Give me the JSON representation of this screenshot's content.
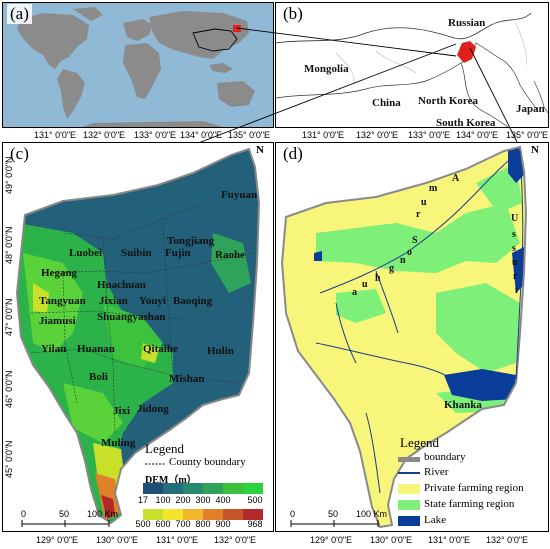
{
  "panels": {
    "a": {
      "label": "(a)"
    },
    "b": {
      "label": "(b)"
    },
    "c": {
      "label": "(c)"
    },
    "d": {
      "label": "(d)"
    }
  },
  "countries": [
    "Russian",
    "Mongolia",
    "China",
    "North Korea",
    "South Korea",
    "Japan"
  ],
  "top_lon_ticks": [
    "131° 0'0\"E",
    "132° 0'0\"E",
    "133° 0'0\"E",
    "134° 0'0\"E",
    "135° 0'0\"E",
    "131° 0'0\"E",
    "132° 0'0\"E",
    "133° 0'0\"E",
    "134° 0'0\"E",
    "135° 0'0\"E"
  ],
  "bottom_lon_ticks": [
    "129° 0'0\"E",
    "130° 0'0\"E",
    "131° 0'0\"E",
    "132° 0'0\"E",
    "129° 0'0\"E",
    "130° 0'0\"E",
    "131° 0'0\"E",
    "132° 0'0\"E"
  ],
  "lat_ticks": [
    "49° 0'0\"N",
    "48° 0'0\"N",
    "47° 0'0\"N",
    "46° 0'0\"N",
    "45° 0'0\"N"
  ],
  "counties": [
    "Fuyuan",
    "Tongjiang",
    "Luobei",
    "Suibin",
    "Fujin",
    "Raohe",
    "Hegang",
    "Huachuan",
    "Tangyuan",
    "Jixian",
    "Youyi",
    "Baoqing",
    "Jiamusi",
    "Shuangyashan",
    "Yilan",
    "Huanan",
    "Qitaihe",
    "Hulin",
    "Boli",
    "Mishan",
    "Jixi",
    "Jidong",
    "Muling"
  ],
  "rivers": {
    "amur": [
      "A",
      "m",
      "u",
      "r"
    ],
    "songhua": [
      "S",
      "o",
      "n",
      "g",
      "h",
      "u",
      "a"
    ],
    "ussuri": [
      "U",
      "s",
      "s",
      "u",
      "r",
      "i"
    ]
  },
  "lake_label": "Khanka",
  "legend_c": {
    "title": "Legend",
    "boundary": "County boundary",
    "dem_title": "DEM（m）",
    "ramp_top_labels": [
      "17",
      "100",
      "200",
      "300",
      "400",
      "500"
    ],
    "ramp_bottom_labels": [
      "500",
      "600",
      "700",
      "800",
      "900",
      "968"
    ],
    "ramp_top_colors": [
      "#1f4e79",
      "#236e79",
      "#27896e",
      "#2fa35a",
      "#3cbf3c",
      "#2bd43a"
    ],
    "ramp_bottom_colors": [
      "#c8e02a",
      "#f2e62a",
      "#f2b62a",
      "#e0812a",
      "#c4552a",
      "#b02a2a"
    ]
  },
  "legend_d": {
    "title": "Legend",
    "items": [
      {
        "label": "boundary",
        "color": "#8a8a8a"
      },
      {
        "label": "River",
        "color": "#1a3d8f"
      },
      {
        "label": "Private farming region",
        "color": "#f7f57a"
      },
      {
        "label": "State farming region",
        "color": "#7ef07a"
      },
      {
        "label": "Lake",
        "color": "#0a3c9a"
      }
    ]
  },
  "scale": {
    "labels": [
      "0",
      "50",
      "100 Km"
    ]
  },
  "north": "N",
  "colors": {
    "ocean": "#8fb9d4",
    "land_world": "#8b8b8b",
    "highlight": "#e0201c",
    "dem_low": "#23607a",
    "private": "#f7f57a",
    "state": "#7ef07a",
    "lake": "#0a3c9a"
  }
}
